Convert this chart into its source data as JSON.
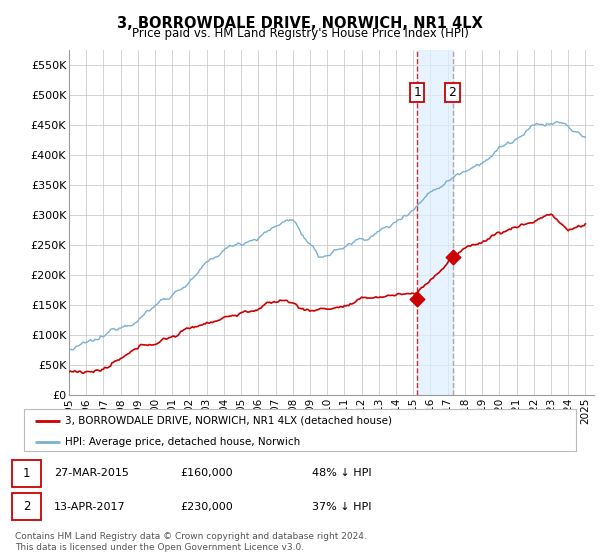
{
  "title": "3, BORROWDALE DRIVE, NORWICH, NR1 4LX",
  "subtitle": "Price paid vs. HM Land Registry's House Price Index (HPI)",
  "ylabel_ticks": [
    "£0",
    "£50K",
    "£100K",
    "£150K",
    "£200K",
    "£250K",
    "£300K",
    "£350K",
    "£400K",
    "£450K",
    "£500K",
    "£550K"
  ],
  "ytick_values": [
    0,
    50000,
    100000,
    150000,
    200000,
    250000,
    300000,
    350000,
    400000,
    450000,
    500000,
    550000
  ],
  "ylim": [
    0,
    575000
  ],
  "xlim_start": 1995.0,
  "xlim_end": 2025.5,
  "legend_entries": [
    "3, BORROWDALE DRIVE, NORWICH, NR1 4LX (detached house)",
    "HPI: Average price, detached house, Norwich"
  ],
  "legend_colors": [
    "#cc0000",
    "#7ab0d4"
  ],
  "transaction1_x": 2015.23,
  "transaction1_y": 160000,
  "transaction2_x": 2017.28,
  "transaction2_y": 230000,
  "footer": "Contains HM Land Registry data © Crown copyright and database right 2024.\nThis data is licensed under the Open Government Licence v3.0.",
  "background_color": "#ffffff",
  "grid_color": "#cccccc",
  "hpi_line_color": "#7ab0d4",
  "price_line_color": "#cc0000",
  "vline1_color": "#cc3333",
  "vline2_color": "#aaaaaa",
  "span_color": "#ddeeff"
}
